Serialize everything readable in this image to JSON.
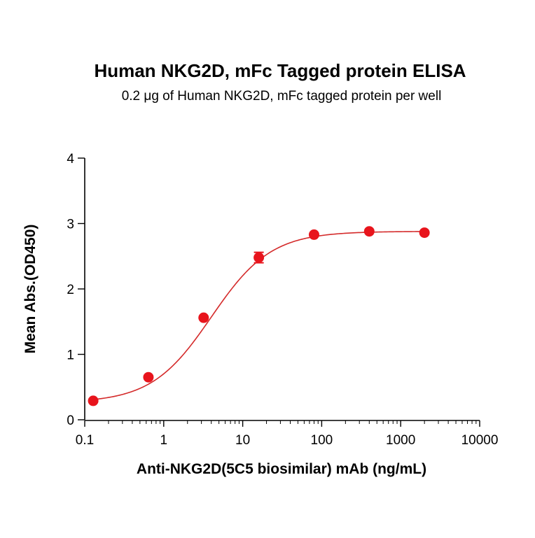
{
  "chart_data": {
    "type": "scatter",
    "title": "Human NKG2D, mFc Tagged protein ELISA",
    "subtitle": "0.2 μg of Human NKG2D, mFc tagged protein per well",
    "xlabel": "Anti-NKG2D(5C5 biosimilar) mAb (ng/mL)",
    "ylabel": "Mean Abs.(OD450)",
    "xscale": "log",
    "xlim": [
      0.1,
      10000
    ],
    "ylim": [
      0,
      4
    ],
    "x_ticks": [
      "0.1",
      "1",
      "10",
      "100",
      "1000",
      "10000"
    ],
    "y_ticks": [
      "0",
      "1",
      "2",
      "3",
      "4"
    ],
    "grid": false,
    "legend": "none",
    "series": [
      {
        "x": [
          0.128,
          0.64,
          3.2,
          16,
          80,
          400,
          2000
        ],
        "y": [
          0.29,
          0.65,
          1.56,
          2.48,
          2.83,
          2.88,
          2.86
        ],
        "error": [
          0,
          0,
          0,
          0.08,
          0,
          0,
          0
        ],
        "fit": "4PL"
      }
    ],
    "colors": {
      "series": "#e8141c",
      "curve": "#d42a2a",
      "axis": "#000000"
    }
  }
}
